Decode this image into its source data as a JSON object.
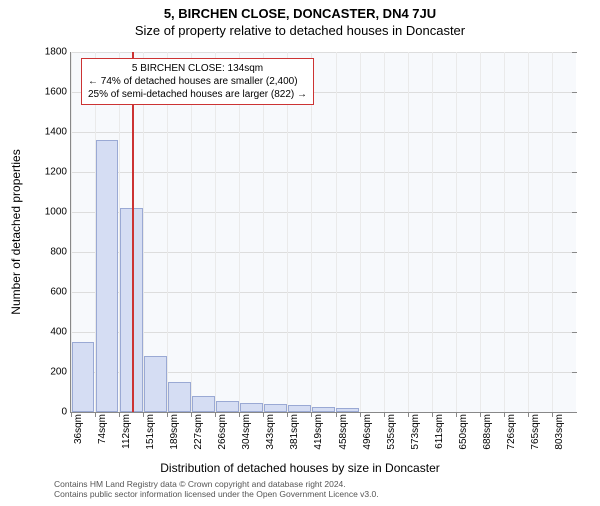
{
  "title_main": "5, BIRCHEN CLOSE, DONCASTER, DN4 7JU",
  "title_sub": "Size of property relative to detached houses in Doncaster",
  "y_label": "Number of detached properties",
  "x_label": "Distribution of detached houses by size in Doncaster",
  "chart": {
    "type": "histogram",
    "background_color": "#f7f9fc",
    "bar_fill": "#d5ddf3",
    "bar_border": "#9aa9d4",
    "grid_color": "#dddddd",
    "refline_color": "#cc3333",
    "ylim": [
      0,
      1800
    ],
    "y_ticks": [
      0,
      200,
      400,
      600,
      800,
      1000,
      1200,
      1400,
      1600,
      1800
    ],
    "categories": [
      "36sqm",
      "74sqm",
      "112sqm",
      "151sqm",
      "189sqm",
      "227sqm",
      "266sqm",
      "304sqm",
      "343sqm",
      "381sqm",
      "419sqm",
      "458sqm",
      "496sqm",
      "535sqm",
      "573sqm",
      "611sqm",
      "650sqm",
      "688sqm",
      "726sqm",
      "765sqm",
      "803sqm"
    ],
    "values": [
      350,
      1360,
      1020,
      280,
      150,
      80,
      55,
      45,
      40,
      35,
      25,
      18,
      0,
      0,
      0,
      0,
      0,
      0,
      0,
      0,
      0
    ],
    "reference_x_sqm": 134,
    "x_min": 36,
    "x_step": 38.4
  },
  "info_box": {
    "line1": "5 BIRCHEN CLOSE: 134sqm",
    "line2": "← 74% of detached houses are smaller (2,400)",
    "line3": "25% of semi-detached houses are larger (822) →"
  },
  "footer": {
    "line1": "Contains HM Land Registry data © Crown copyright and database right 2024.",
    "line2": "Contains public sector information licensed under the Open Government Licence v3.0."
  }
}
